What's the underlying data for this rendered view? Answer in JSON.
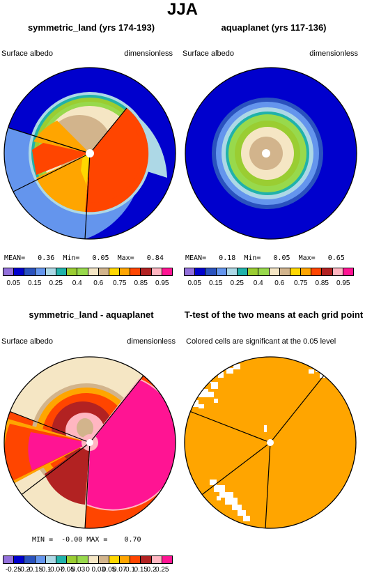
{
  "title": "JJA",
  "panels": [
    {
      "title": "symmetric_land (yrs 174-193)",
      "left_label": "Surface albedo",
      "right_label": "dimensionless",
      "stats": {
        "mean_label": "MEAN=",
        "mean": "0.36",
        "min_label": "Min=",
        "min": "0.05",
        "max_label": "Max=",
        "max": "0.84"
      }
    },
    {
      "title": "aquaplanet (yrs 117-136)",
      "left_label": "Surface albedo",
      "right_label": "dimensionless",
      "stats": {
        "mean_label": "MEAN=",
        "mean": "0.18",
        "min_label": "Min=",
        "min": "0.05",
        "max_label": "Max=",
        "max": "0.65"
      }
    },
    {
      "title": "symmetric_land - aquaplanet",
      "left_label": "Surface albedo",
      "right_label": "dimensionless",
      "stats": {
        "min_label": "MIN =",
        "min": "-0.00",
        "max_label": "MAX =",
        "max": "0.70"
      }
    },
    {
      "title": "T-test of the two means at each grid point",
      "subtitle": "Colored cells are significant at the 0.05 level"
    }
  ],
  "colorbar_abs": {
    "labels": [
      "0.05",
      "0.15",
      "0.25",
      "0.4",
      "0.6",
      "0.75",
      "0.85",
      "0.95"
    ],
    "colors": [
      "#9370db",
      "#0000cd",
      "#2a52be",
      "#6495ed",
      "#add8e6",
      "#20b2aa",
      "#9acd32",
      "#98d94c",
      "#f5e6c4",
      "#d2b48c",
      "#ffd700",
      "#ffa500",
      "#ff4500",
      "#b22222",
      "#ffb6c1",
      "#ff1493"
    ]
  },
  "colorbar_diff": {
    "labels": [
      "-0.25",
      "-0.2",
      "-0.15",
      "-0.1",
      "-0.07",
      "-0.05",
      "-0.03",
      "0",
      "0.03",
      "0.05",
      "0.07",
      "0.1",
      "0.15",
      "0.2",
      "0.25"
    ],
    "colors": [
      "#9370db",
      "#0000cd",
      "#2a52be",
      "#6495ed",
      "#add8e6",
      "#20b2aa",
      "#9acd32",
      "#98d94c",
      "#f5e6c4",
      "#d2b48c",
      "#ffd700",
      "#ffa500",
      "#ff4500",
      "#b22222",
      "#ffb6c1",
      "#ff1493"
    ]
  },
  "chart_data": [
    {
      "type": "heatmap",
      "title": "symmetric_land (yrs 174-193)",
      "variable": "Surface albedo",
      "units": "dimensionless",
      "mean": 0.36,
      "min": 0.05,
      "max": 0.84
    },
    {
      "type": "heatmap",
      "title": "aquaplanet (yrs 117-136)",
      "variable": "Surface albedo",
      "units": "dimensionless",
      "mean": 0.18,
      "min": 0.05,
      "max": 0.65
    },
    {
      "type": "heatmap",
      "title": "symmetric_land - aquaplanet",
      "variable": "Surface albedo",
      "units": "dimensionless",
      "min": -0.0,
      "max": 0.7
    },
    {
      "type": "heatmap",
      "title": "T-test of the two means at each grid point",
      "subtitle": "Colored cells are significant at the 0.05 level"
    }
  ]
}
